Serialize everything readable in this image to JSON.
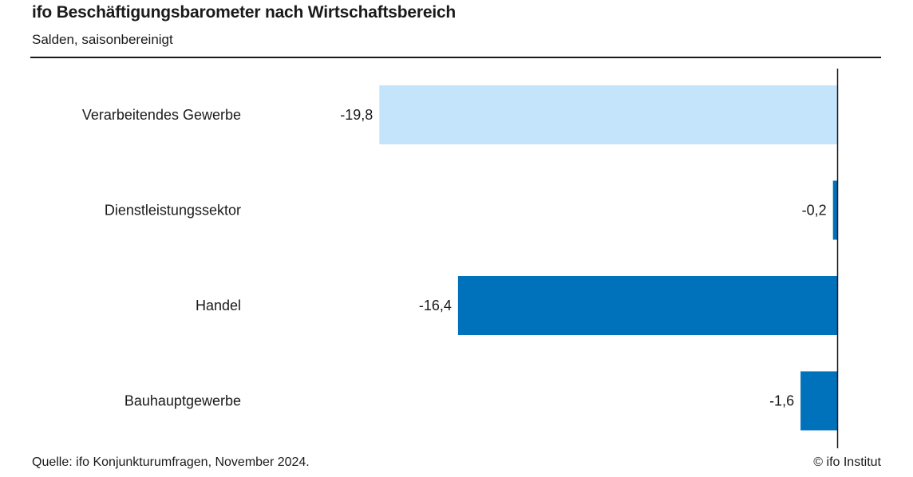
{
  "chart_data": {
    "type": "bar",
    "orientation": "horizontal",
    "title": "ifo Beschäftigungsbarometer nach Wirtschaftsbereich",
    "subtitle": "Salden, saisonbereinigt",
    "categories": [
      "Verarbeitendes Gewerbe",
      "Dienstleistungssektor",
      "Handel",
      "Bauhauptgewerbe"
    ],
    "values": [
      -19.8,
      -0.2,
      -16.4,
      -1.6
    ],
    "value_labels": [
      "-19,8",
      "-0,2",
      "-16,4",
      "-1,6"
    ],
    "bar_colors": [
      "#c4e4fb",
      "#0072bc",
      "#0072bc",
      "#0072bc"
    ],
    "xlim": [
      -20,
      0
    ],
    "grid": false,
    "legend": "none"
  },
  "footer": {
    "source": "Quelle: ifo Konjunkturumfragen, November 2024.",
    "copyright": "© ifo Institut"
  }
}
